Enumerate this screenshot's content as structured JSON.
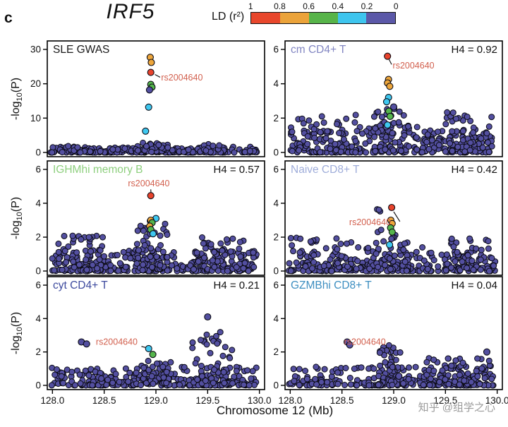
{
  "figure_label": "c",
  "title": "IRF5",
  "legend": {
    "label": "LD (r²)",
    "tick_labels": [
      "1",
      "0.8",
      "0.6",
      "0.4",
      "0.2",
      "0"
    ],
    "colors": [
      "#e8472c",
      "#eba33a",
      "#57b449",
      "#3ec5ee",
      "#5b58a8"
    ]
  },
  "point_colors": {
    "red": "#e8432c",
    "orange": "#eda63b",
    "green": "#55b54c",
    "cyan": "#3fc8f0",
    "purple": "#534fa0"
  },
  "annotation_color": "#d2604e",
  "watermark": "知乎 @组学之心",
  "chart_data": {
    "type": "scatter",
    "x_axis": {
      "label": "Chromosome 12 (Mb)",
      "range": [
        127.95,
        130.05
      ],
      "ticks": [
        "128.0",
        "128.5",
        "129.0",
        "129.5",
        "130.0"
      ],
      "tick_values": [
        128.0,
        128.5,
        129.0,
        129.5,
        130.0
      ]
    },
    "y_axis_label": "-log10(P)",
    "lead_snp": "rs2004640",
    "panels": [
      {
        "id": "sle-gwas",
        "title": "SLE GWAS",
        "title_color": "#1a1a1a",
        "h4_label": "",
        "ylim": [
          0,
          30
        ],
        "yticks": [
          0,
          10,
          20,
          30
        ],
        "show_x_tick_labels": false,
        "annotation": {
          "text": "rs2004640",
          "tx": 129.05,
          "ty": 21.0,
          "line": [
            129.04,
            21.9,
            128.99,
            22.7
          ]
        },
        "highlight_points": [
          {
            "x": 128.945,
            "y": 27.7,
            "c": "orange"
          },
          {
            "x": 128.955,
            "y": 26.2,
            "c": "orange"
          },
          {
            "x": 128.95,
            "y": 19.8,
            "c": "green"
          },
          {
            "x": 128.962,
            "y": 19.0,
            "c": "green"
          },
          {
            "x": 128.938,
            "y": 18.2,
            "c": "purple"
          },
          {
            "x": 128.93,
            "y": 13.2,
            "c": "cyan"
          },
          {
            "x": 128.9,
            "y": 6.2,
            "c": "cyan"
          },
          {
            "x": 128.95,
            "y": 23.3,
            "c": "red"
          }
        ],
        "background_clusters": [
          {
            "x0": 127.98,
            "x1": 129.98,
            "ymax": 1.7,
            "n": 240,
            "bias": 2.4
          },
          {
            "x0": 128.8,
            "x1": 129.12,
            "ymax": 3.0,
            "n": 40,
            "bias": 1.6
          },
          {
            "x0": 129.4,
            "x1": 129.62,
            "ymax": 2.4,
            "n": 14,
            "bias": 1.4
          },
          {
            "x0": 128.15,
            "x1": 128.4,
            "ymax": 1.9,
            "n": 12,
            "bias": 1.4
          }
        ]
      },
      {
        "id": "cm-cd4-t",
        "title": "cm CD4+ T",
        "title_color": "#8286c2",
        "h4_label": "H4 = 0.92",
        "ylim": [
          0,
          6
        ],
        "yticks": [
          0,
          2,
          4,
          6
        ],
        "show_x_tick_labels": false,
        "annotation": {
          "text": "rs2004640",
          "tx": 128.99,
          "ty": 4.9,
          "line": [
            128.98,
            5.12,
            128.955,
            5.42
          ]
        },
        "highlight_points": [
          {
            "x": 128.95,
            "y": 4.25,
            "c": "orange"
          },
          {
            "x": 128.94,
            "y": 4.05,
            "c": "orange"
          },
          {
            "x": 128.962,
            "y": 3.85,
            "c": "orange"
          },
          {
            "x": 128.95,
            "y": 3.2,
            "c": "cyan"
          },
          {
            "x": 128.932,
            "y": 2.95,
            "c": "cyan"
          },
          {
            "x": 128.952,
            "y": 2.4,
            "c": "green"
          },
          {
            "x": 128.965,
            "y": 2.1,
            "c": "green"
          },
          {
            "x": 128.94,
            "y": 1.6,
            "c": "cyan"
          },
          {
            "x": 129.0,
            "y": 2.65,
            "c": "purple"
          },
          {
            "x": 128.94,
            "y": 5.6,
            "c": "red"
          }
        ],
        "background_clusters": [
          {
            "x0": 127.98,
            "x1": 129.98,
            "ymax": 1.5,
            "n": 250,
            "bias": 2.2
          },
          {
            "x0": 128.05,
            "x1": 128.65,
            "ymax": 2.2,
            "n": 55,
            "bias": 1.7
          },
          {
            "x0": 128.8,
            "x1": 129.15,
            "ymax": 2.7,
            "n": 50,
            "bias": 1.5
          },
          {
            "x0": 129.5,
            "x1": 129.95,
            "ymax": 2.5,
            "n": 50,
            "bias": 1.6
          }
        ]
      },
      {
        "id": "ighmhi-memory-b",
        "title": "IGHMhi memory B",
        "title_color": "#8ecf7e",
        "h4_label": "H4 = 0.57",
        "ylim": [
          0,
          6
        ],
        "yticks": [
          0,
          2,
          4,
          6
        ],
        "show_x_tick_labels": false,
        "annotation": {
          "text": "rs2004640",
          "tx": 128.73,
          "ty": 5.0,
          "line": [
            128.95,
            4.82,
            128.952,
            4.62
          ]
        },
        "highlight_points": [
          {
            "x": 129.0,
            "y": 3.1,
            "c": "cyan"
          },
          {
            "x": 128.95,
            "y": 3.0,
            "c": "orange"
          },
          {
            "x": 128.963,
            "y": 2.85,
            "c": "green"
          },
          {
            "x": 128.94,
            "y": 2.65,
            "c": "orange"
          },
          {
            "x": 128.95,
            "y": 2.45,
            "c": "green"
          },
          {
            "x": 128.972,
            "y": 2.2,
            "c": "cyan"
          },
          {
            "x": 128.95,
            "y": 4.45,
            "c": "red"
          }
        ],
        "background_clusters": [
          {
            "x0": 127.98,
            "x1": 129.98,
            "ymax": 1.3,
            "n": 240,
            "bias": 2.2
          },
          {
            "x0": 128.05,
            "x1": 128.5,
            "ymax": 2.2,
            "n": 60,
            "bias": 1.6
          },
          {
            "x0": 128.8,
            "x1": 129.12,
            "ymax": 3.0,
            "n": 60,
            "bias": 1.35
          },
          {
            "x0": 129.3,
            "x1": 129.95,
            "ymax": 2.0,
            "n": 70,
            "bias": 1.7
          }
        ]
      },
      {
        "id": "naive-cd8-t",
        "title": "Naive CD8+ T",
        "title_color": "#9fadda",
        "h4_label": "H4 = 0.42",
        "ylim": [
          0,
          6
        ],
        "yticks": [
          0,
          2,
          4,
          6
        ],
        "show_x_tick_labels": false,
        "annotation": {
          "text": "rs2004640",
          "tx": 128.57,
          "ty": 2.7,
          "line": [
            129.06,
            2.92,
            129.0,
            3.5
          ]
        },
        "highlight_points": [
          {
            "x": 128.972,
            "y": 3.0,
            "c": "orange"
          },
          {
            "x": 128.985,
            "y": 2.8,
            "c": "orange"
          },
          {
            "x": 128.97,
            "y": 2.55,
            "c": "green"
          },
          {
            "x": 128.985,
            "y": 2.3,
            "c": "green"
          },
          {
            "x": 128.96,
            "y": 1.55,
            "c": "cyan"
          },
          {
            "x": 128.98,
            "y": 3.75,
            "c": "red"
          }
        ],
        "background_clusters": [
          {
            "x0": 127.98,
            "x1": 129.98,
            "ymax": 1.4,
            "n": 240,
            "bias": 2.2
          },
          {
            "x0": 128.0,
            "x1": 128.6,
            "ymax": 2.0,
            "n": 50,
            "bias": 1.7
          },
          {
            "x0": 128.83,
            "x1": 128.88,
            "ymax": 3.7,
            "n": 10,
            "bias": 1.1
          },
          {
            "x0": 128.9,
            "x1": 129.15,
            "ymax": 2.3,
            "n": 40,
            "bias": 1.5
          },
          {
            "x0": 129.5,
            "x1": 129.95,
            "ymax": 2.1,
            "n": 50,
            "bias": 1.6
          }
        ]
      },
      {
        "id": "cyt-cd4-t",
        "title": "cyt CD4+ T",
        "title_color": "#3d4a9e",
        "h4_label": "H4 = 0.21",
        "ylim": [
          0,
          6
        ],
        "yticks": [
          0,
          2,
          4,
          6
        ],
        "show_x_tick_labels": true,
        "annotation": {
          "text": "rs2004640",
          "tx": 128.42,
          "ty": 2.42,
          "line": [
            128.86,
            2.33,
            128.905,
            2.26
          ]
        },
        "highlight_points": [
          {
            "x": 128.28,
            "y": 2.6,
            "c": "purple"
          },
          {
            "x": 128.33,
            "y": 2.48,
            "c": "purple"
          },
          {
            "x": 129.5,
            "y": 4.1,
            "c": "purple"
          },
          {
            "x": 128.97,
            "y": 1.85,
            "c": "green"
          },
          {
            "x": 128.93,
            "y": 2.2,
            "c": "cyan"
          }
        ],
        "background_clusters": [
          {
            "x0": 127.98,
            "x1": 129.98,
            "ymax": 1.1,
            "n": 240,
            "bias": 2.3
          },
          {
            "x0": 128.85,
            "x1": 129.15,
            "ymax": 1.5,
            "n": 35,
            "bias": 1.5
          },
          {
            "x0": 129.35,
            "x1": 129.75,
            "ymax": 3.2,
            "n": 55,
            "bias": 1.5
          }
        ]
      },
      {
        "id": "gzmbhi-cd8-t",
        "title": "GZMBhi CD8+ T",
        "title_color": "#3e8fc1",
        "h4_label": "H4 = 0.04",
        "ylim": [
          0,
          6
        ],
        "yticks": [
          0,
          2,
          4,
          6
        ],
        "show_x_tick_labels": true,
        "annotation": {
          "text": "rs2004640",
          "tx": 128.52,
          "ty": 2.42,
          "line": [
            128.95,
            2.28,
            129.04,
            0.72
          ]
        },
        "highlight_points": [
          {
            "x": 128.55,
            "y": 2.6,
            "c": "purple"
          },
          {
            "x": 128.575,
            "y": 2.42,
            "c": "purple"
          },
          {
            "x": 129.9,
            "y": 2.0,
            "c": "purple"
          },
          {
            "x": 129.05,
            "y": 0.55,
            "c": "purple"
          }
        ],
        "background_clusters": [
          {
            "x0": 127.98,
            "x1": 129.98,
            "ymax": 1.2,
            "n": 240,
            "bias": 2.3
          },
          {
            "x0": 128.85,
            "x1": 129.1,
            "ymax": 2.4,
            "n": 40,
            "bias": 1.6
          },
          {
            "x0": 129.3,
            "x1": 129.95,
            "ymax": 1.7,
            "n": 55,
            "bias": 1.7
          }
        ]
      }
    ]
  }
}
